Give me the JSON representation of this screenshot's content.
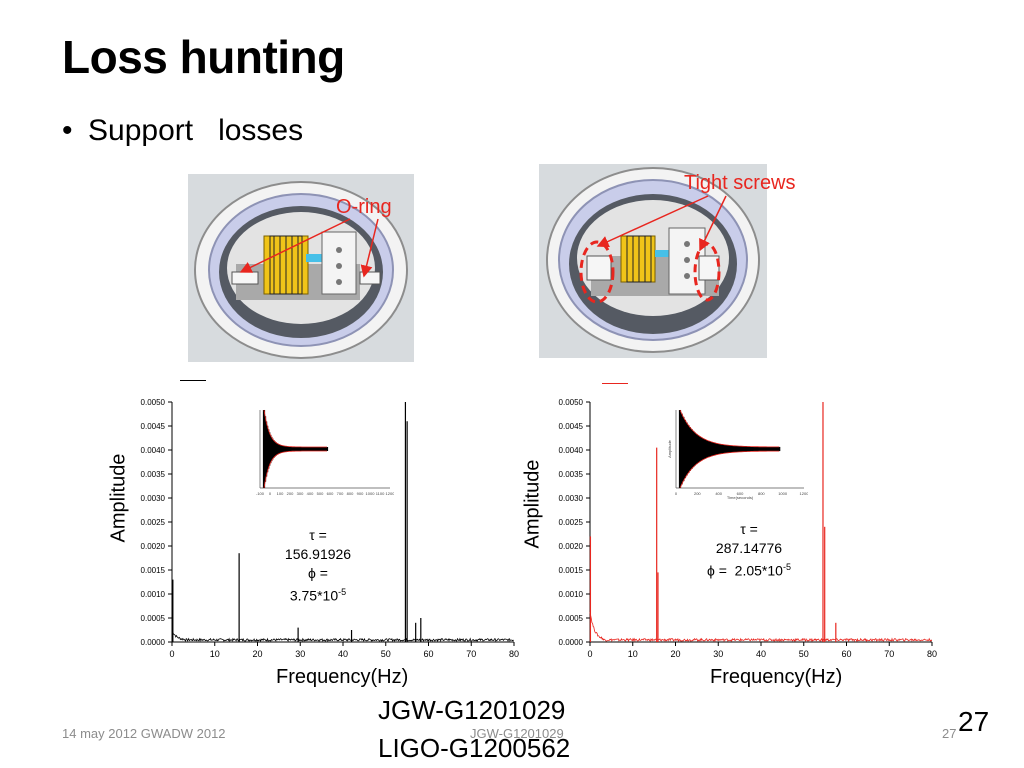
{
  "slide": {
    "title": "Loss hunting",
    "bullet": "Support   losses",
    "bullet_marker": "•",
    "doc_id_jgw": "JGW-G1201029",
    "doc_id_ligo": "LIGO-G1200562",
    "footer_date": "14 may 2012 GWADW 2012",
    "footer_center": "JGW-G1201029",
    "footer_page_small": "27",
    "page_number": "27"
  },
  "photos": {
    "left_annotation": "O-ring",
    "right_annotation": "Tight screws",
    "annotation_color": "#e8261f"
  },
  "chart_data": [
    {
      "type": "line",
      "color": "#000000",
      "xlabel": "Frequency(Hz)",
      "ylabel": "Amplitude",
      "xlim": [
        0,
        80
      ],
      "ylim": [
        0,
        0.005
      ],
      "xticks": [
        "0",
        "10",
        "20",
        "30",
        "40",
        "50",
        "60",
        "70",
        "80"
      ],
      "yticks": [
        "0.0000",
        "0.0005",
        "0.0010",
        "0.0015",
        "0.0020",
        "0.0025",
        "0.0030",
        "0.0035",
        "0.0040",
        "0.0045",
        "0.0050"
      ],
      "peaks": [
        {
          "x": 0.2,
          "y": 0.0013
        },
        {
          "x": 15.7,
          "y": 0.00185
        },
        {
          "x": 29.5,
          "y": 0.0003
        },
        {
          "x": 42.0,
          "y": 0.00025
        },
        {
          "x": 54.6,
          "y": 0.005
        },
        {
          "x": 55.0,
          "y": 0.0046
        },
        {
          "x": 57.0,
          "y": 0.0004
        },
        {
          "x": 58.2,
          "y": 0.0005
        }
      ],
      "inset_text": [
        "τ =",
        "156.91926",
        "ϕ =",
        "3.75*10"
      ],
      "inset_exp": "-5",
      "inset_xticks": [
        "-100",
        "0",
        "100",
        "200",
        "300",
        "400",
        "500",
        "600",
        "700",
        "800",
        "900",
        "1000",
        "1100",
        "1200"
      ]
    },
    {
      "type": "line",
      "color": "#e8261f",
      "xlabel": "Frequency(Hz)",
      "ylabel": "Amplitude",
      "xlim": [
        0,
        80
      ],
      "ylim": [
        0,
        0.005
      ],
      "xticks": [
        "0",
        "10",
        "20",
        "30",
        "40",
        "50",
        "60",
        "70",
        "80"
      ],
      "yticks": [
        "0.0000",
        "0.0005",
        "0.0010",
        "0.0015",
        "0.0020",
        "0.0025",
        "0.0030",
        "0.0035",
        "0.0040",
        "0.0045",
        "0.0050"
      ],
      "peaks": [
        {
          "x": 0.1,
          "y": 0.0022
        },
        {
          "x": 15.6,
          "y": 0.00405
        },
        {
          "x": 15.9,
          "y": 0.00145
        },
        {
          "x": 54.5,
          "y": 0.005
        },
        {
          "x": 54.9,
          "y": 0.0024
        },
        {
          "x": 57.5,
          "y": 0.0004
        }
      ],
      "inset_text": [
        "τ =",
        "287.14776",
        "ϕ =  2.05*10"
      ],
      "inset_exp": "-5",
      "inset_xticks": [
        "0",
        "200",
        "400",
        "600",
        "800",
        "1000",
        "1200"
      ],
      "inset_xlabel": "Time(seconds)",
      "inset_ylabel": "Amplitude"
    }
  ]
}
